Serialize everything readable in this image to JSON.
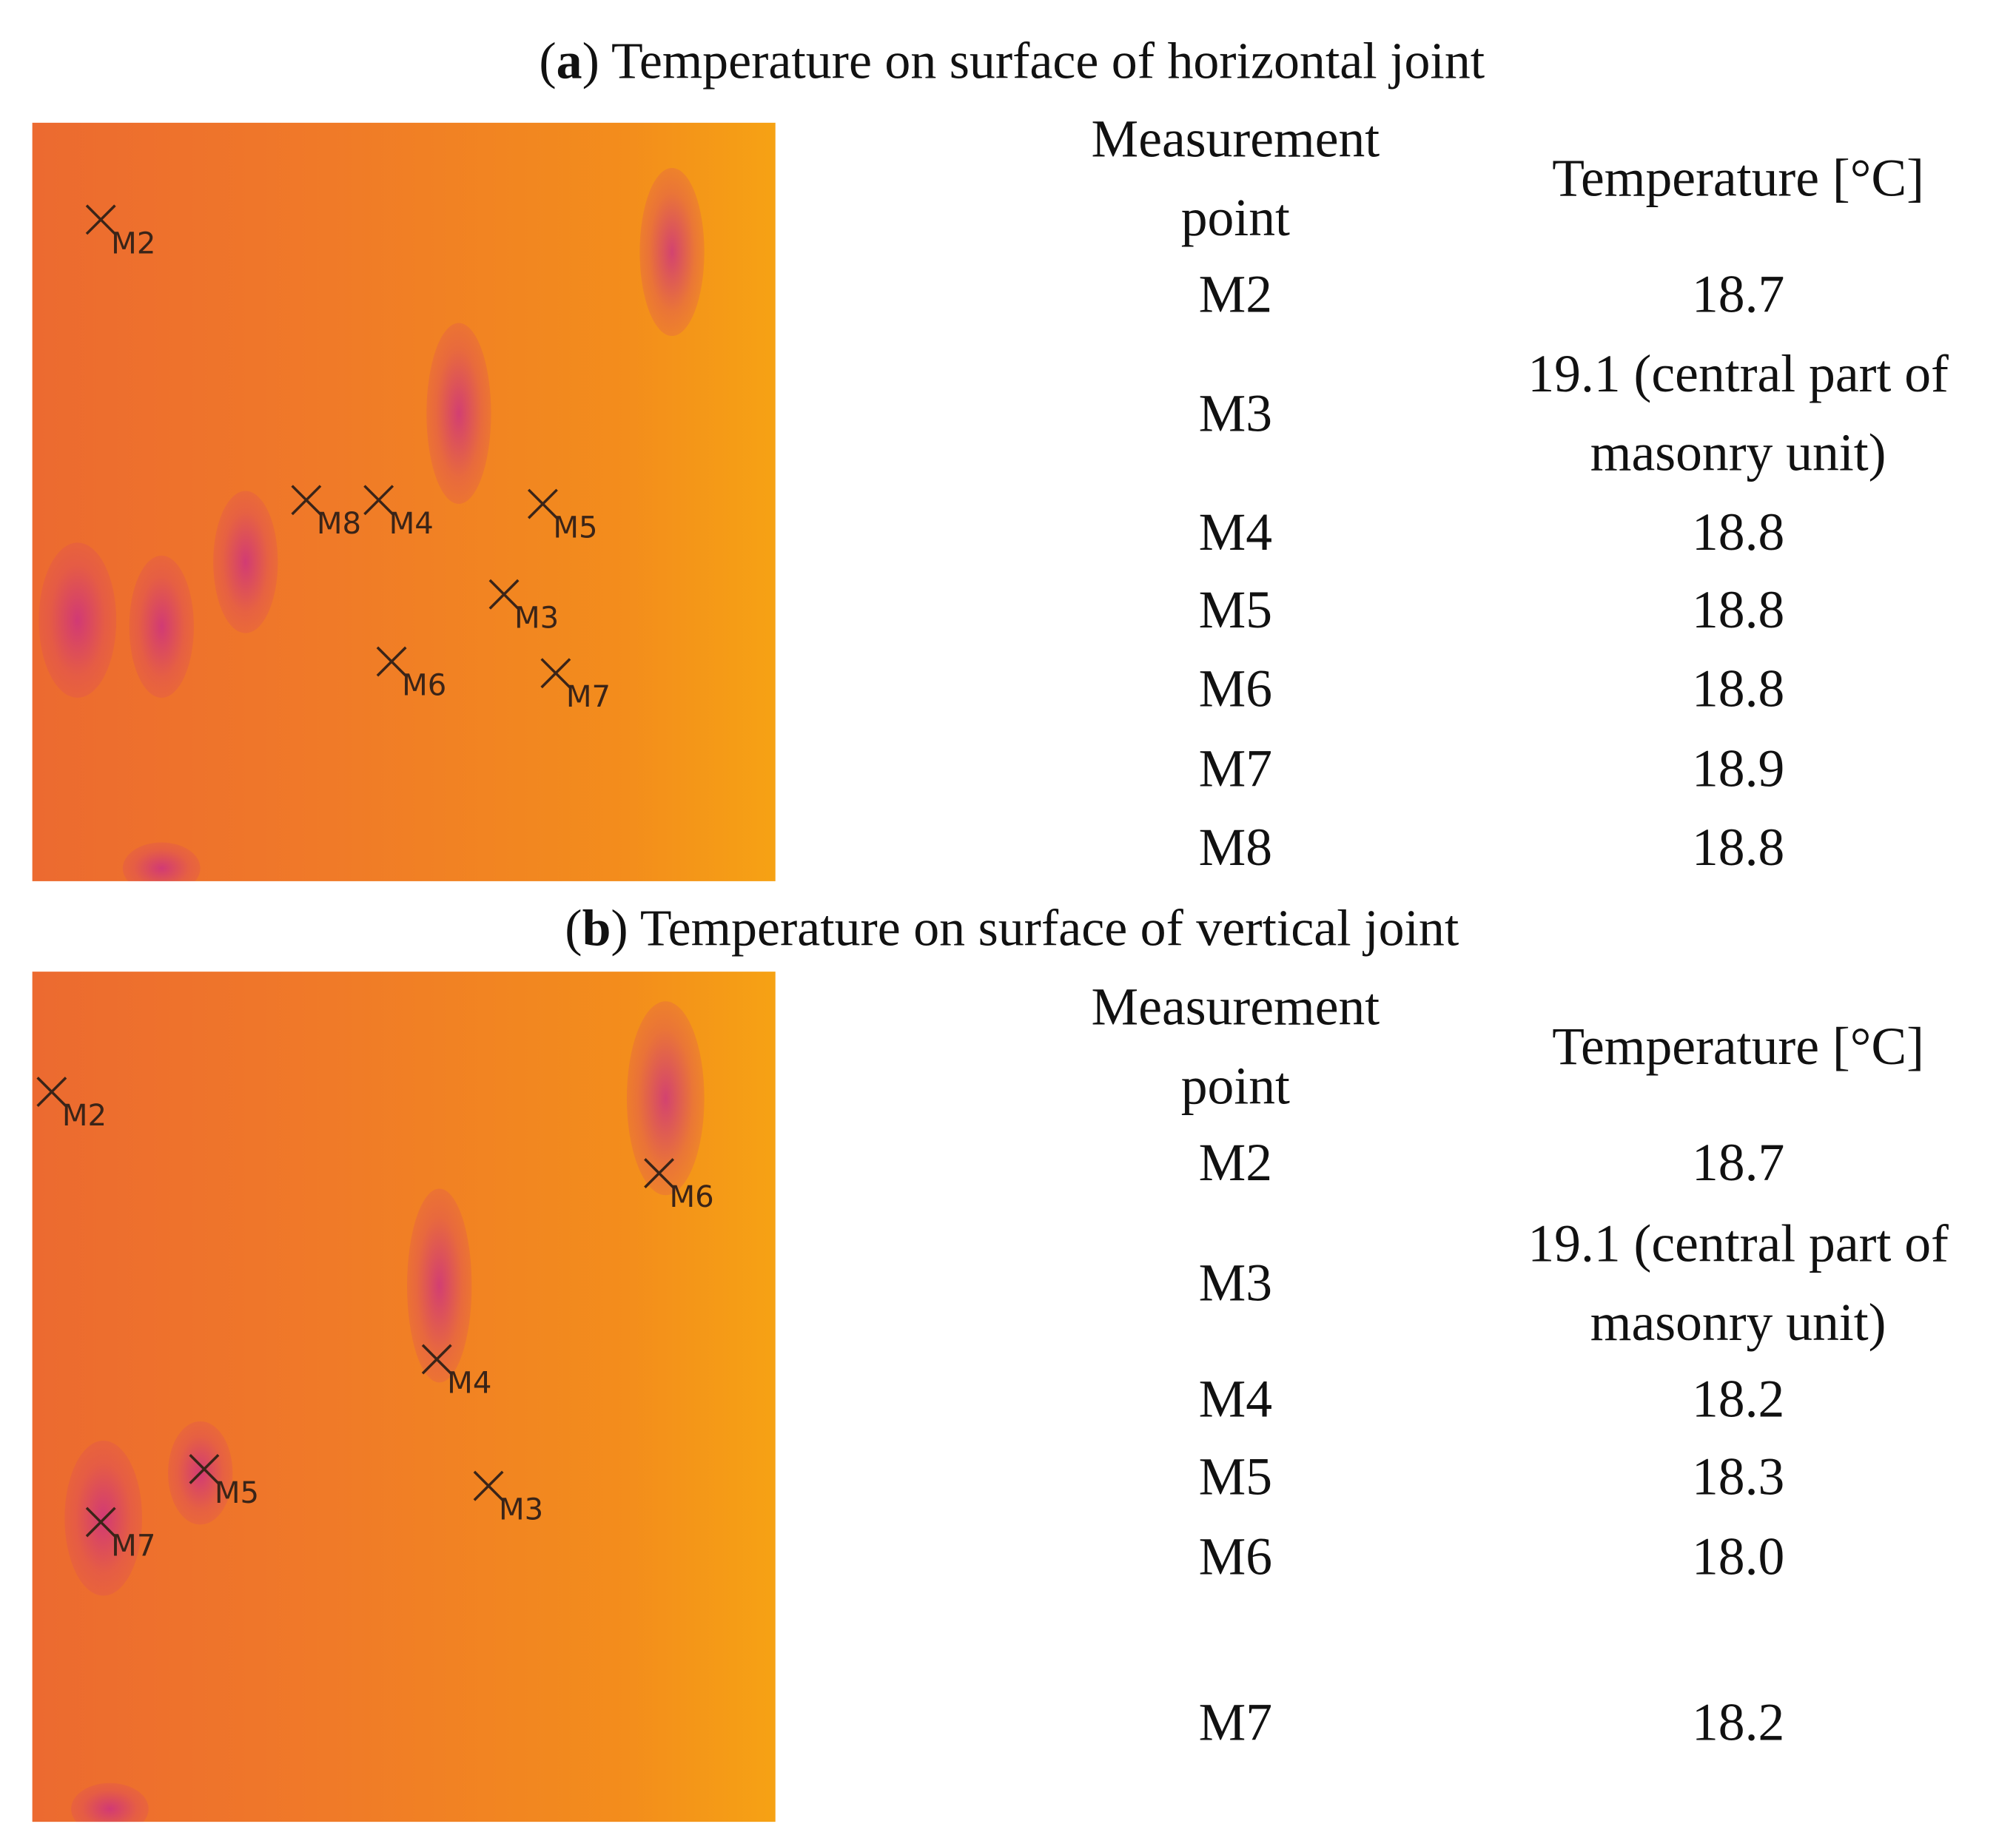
{
  "panels": [
    {
      "title": {
        "open": "(",
        "label": "a",
        "text": ") Temperature on surface of horizontal joint"
      },
      "image": {
        "markers": [
          "M2",
          "M8",
          "M4",
          "M5",
          "M3",
          "M6",
          "M7"
        ]
      },
      "table": {
        "header": [
          "Measurement point",
          "Temperature [°C]"
        ],
        "rows": [
          [
            "M2",
            "18.7"
          ],
          [
            "M3",
            "19.1 (central part of masonry unit)"
          ],
          [
            "M4",
            "18.8"
          ],
          [
            "M5",
            "18.8"
          ],
          [
            "M6",
            "18.8"
          ],
          [
            "M7",
            "18.9"
          ],
          [
            "M8",
            "18.8"
          ]
        ]
      }
    },
    {
      "title": {
        "open": "(",
        "label": "b",
        "text": ") Temperature on surface of vertical joint"
      },
      "image": {
        "markers": [
          "M2",
          "M6",
          "M4",
          "M5",
          "M3",
          "M7"
        ]
      },
      "table": {
        "header": [
          "Measurement point",
          "Temperature [°C]"
        ],
        "rows": [
          [
            "M2",
            "18.7"
          ],
          [
            "M3",
            "19.1 (central part of masonry unit)"
          ],
          [
            "M4",
            "18.2"
          ],
          [
            "M5",
            "18.3"
          ],
          [
            "M6",
            "18.0"
          ],
          [
            "M7",
            "18.2"
          ]
        ]
      }
    }
  ]
}
